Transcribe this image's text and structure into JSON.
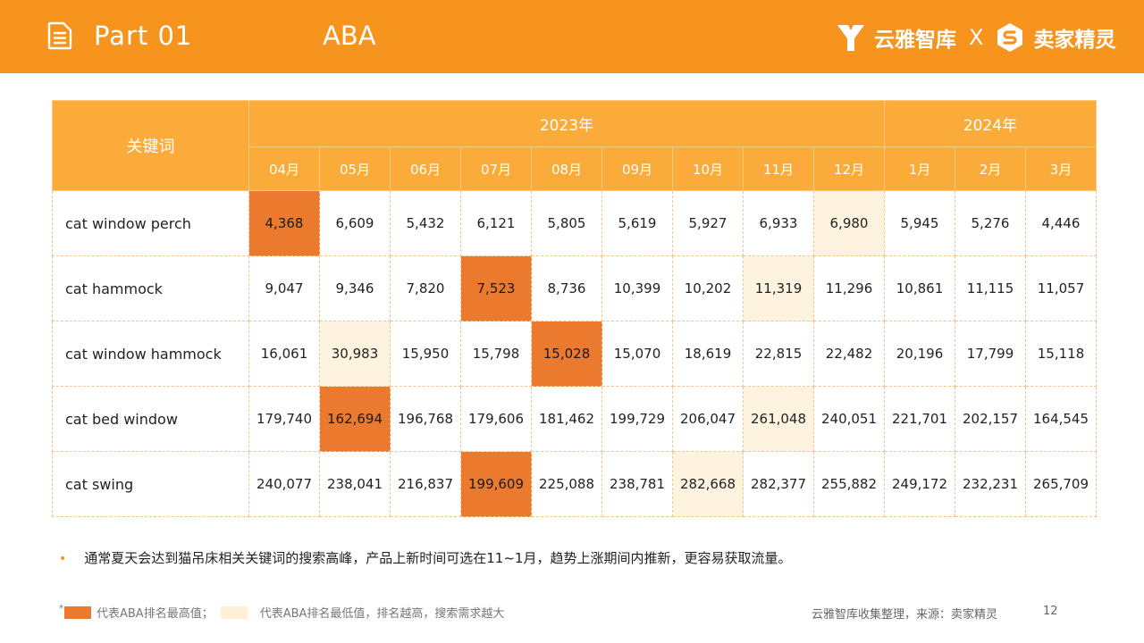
{
  "header": {
    "part_label": "Part 01",
    "section_title": "ABA",
    "brand_left": "云雅智库",
    "separator": "X",
    "brand_right": "卖家精灵",
    "icon": "document-icon",
    "background_color": "#f7941d"
  },
  "table": {
    "keyword_header": "关键词",
    "year_groups": [
      {
        "label": "2023年",
        "months": [
          "04月",
          "05月",
          "06月",
          "07月",
          "08月",
          "09月",
          "10月",
          "11月",
          "12月"
        ]
      },
      {
        "label": "2024年",
        "months": [
          "1月",
          "2月",
          "3月"
        ]
      }
    ],
    "rows": [
      {
        "keyword": "cat window perch",
        "values": [
          "4,368",
          "6,609",
          "5,432",
          "6,121",
          "5,805",
          "5,619",
          "5,927",
          "6,933",
          "6,980",
          "5,945",
          "5,276",
          "4,446"
        ],
        "highest_index": 0,
        "lowest_index": 8
      },
      {
        "keyword": "cat hammock",
        "values": [
          "9,047",
          "9,346",
          "7,820",
          "7,523",
          "8,736",
          "10,399",
          "10,202",
          "11,319",
          "11,296",
          "10,861",
          "11,115",
          "11,057"
        ],
        "highest_index": 3,
        "lowest_index": 7
      },
      {
        "keyword": "cat window hammock",
        "values": [
          "16,061",
          "30,983",
          "15,950",
          "15,798",
          "15,028",
          "15,070",
          "18,619",
          "22,815",
          "22,482",
          "20,196",
          "17,799",
          "15,118"
        ],
        "highest_index": 4,
        "lowest_index": 1
      },
      {
        "keyword": "cat bed window",
        "values": [
          "179,740",
          "162,694",
          "196,768",
          "179,606",
          "181,462",
          "199,729",
          "206,047",
          "261,048",
          "240,051",
          "221,701",
          "202,157",
          "164,545"
        ],
        "highest_index": 1,
        "lowest_index": 7
      },
      {
        "keyword": "cat swing",
        "values": [
          "240,077",
          "238,041",
          "216,837",
          "199,609",
          "225,088",
          "238,781",
          "282,668",
          "282,377",
          "255,882",
          "249,172",
          "232,231",
          "265,709"
        ],
        "highest_index": 3,
        "lowest_index": 6
      }
    ],
    "colors": {
      "highest": "#ec7a2e",
      "lowest": "#fdf3df",
      "header": "#fbab3a"
    }
  },
  "note": {
    "bullet": "•",
    "text": "通常夏天会达到猫吊床相关关键词的搜索高峰，产品上新时间可选在11~1月，趋势上涨期间内推新，更容易获取流量。"
  },
  "legend": {
    "star": "*",
    "highest_label": "代表ABA排名最高值；",
    "lowest_label": "代表ABA排名最低值，排名越高，搜索需求越大"
  },
  "footer": {
    "source": "云雅智库收集整理，来源：卖家精灵",
    "page_number": "12"
  }
}
